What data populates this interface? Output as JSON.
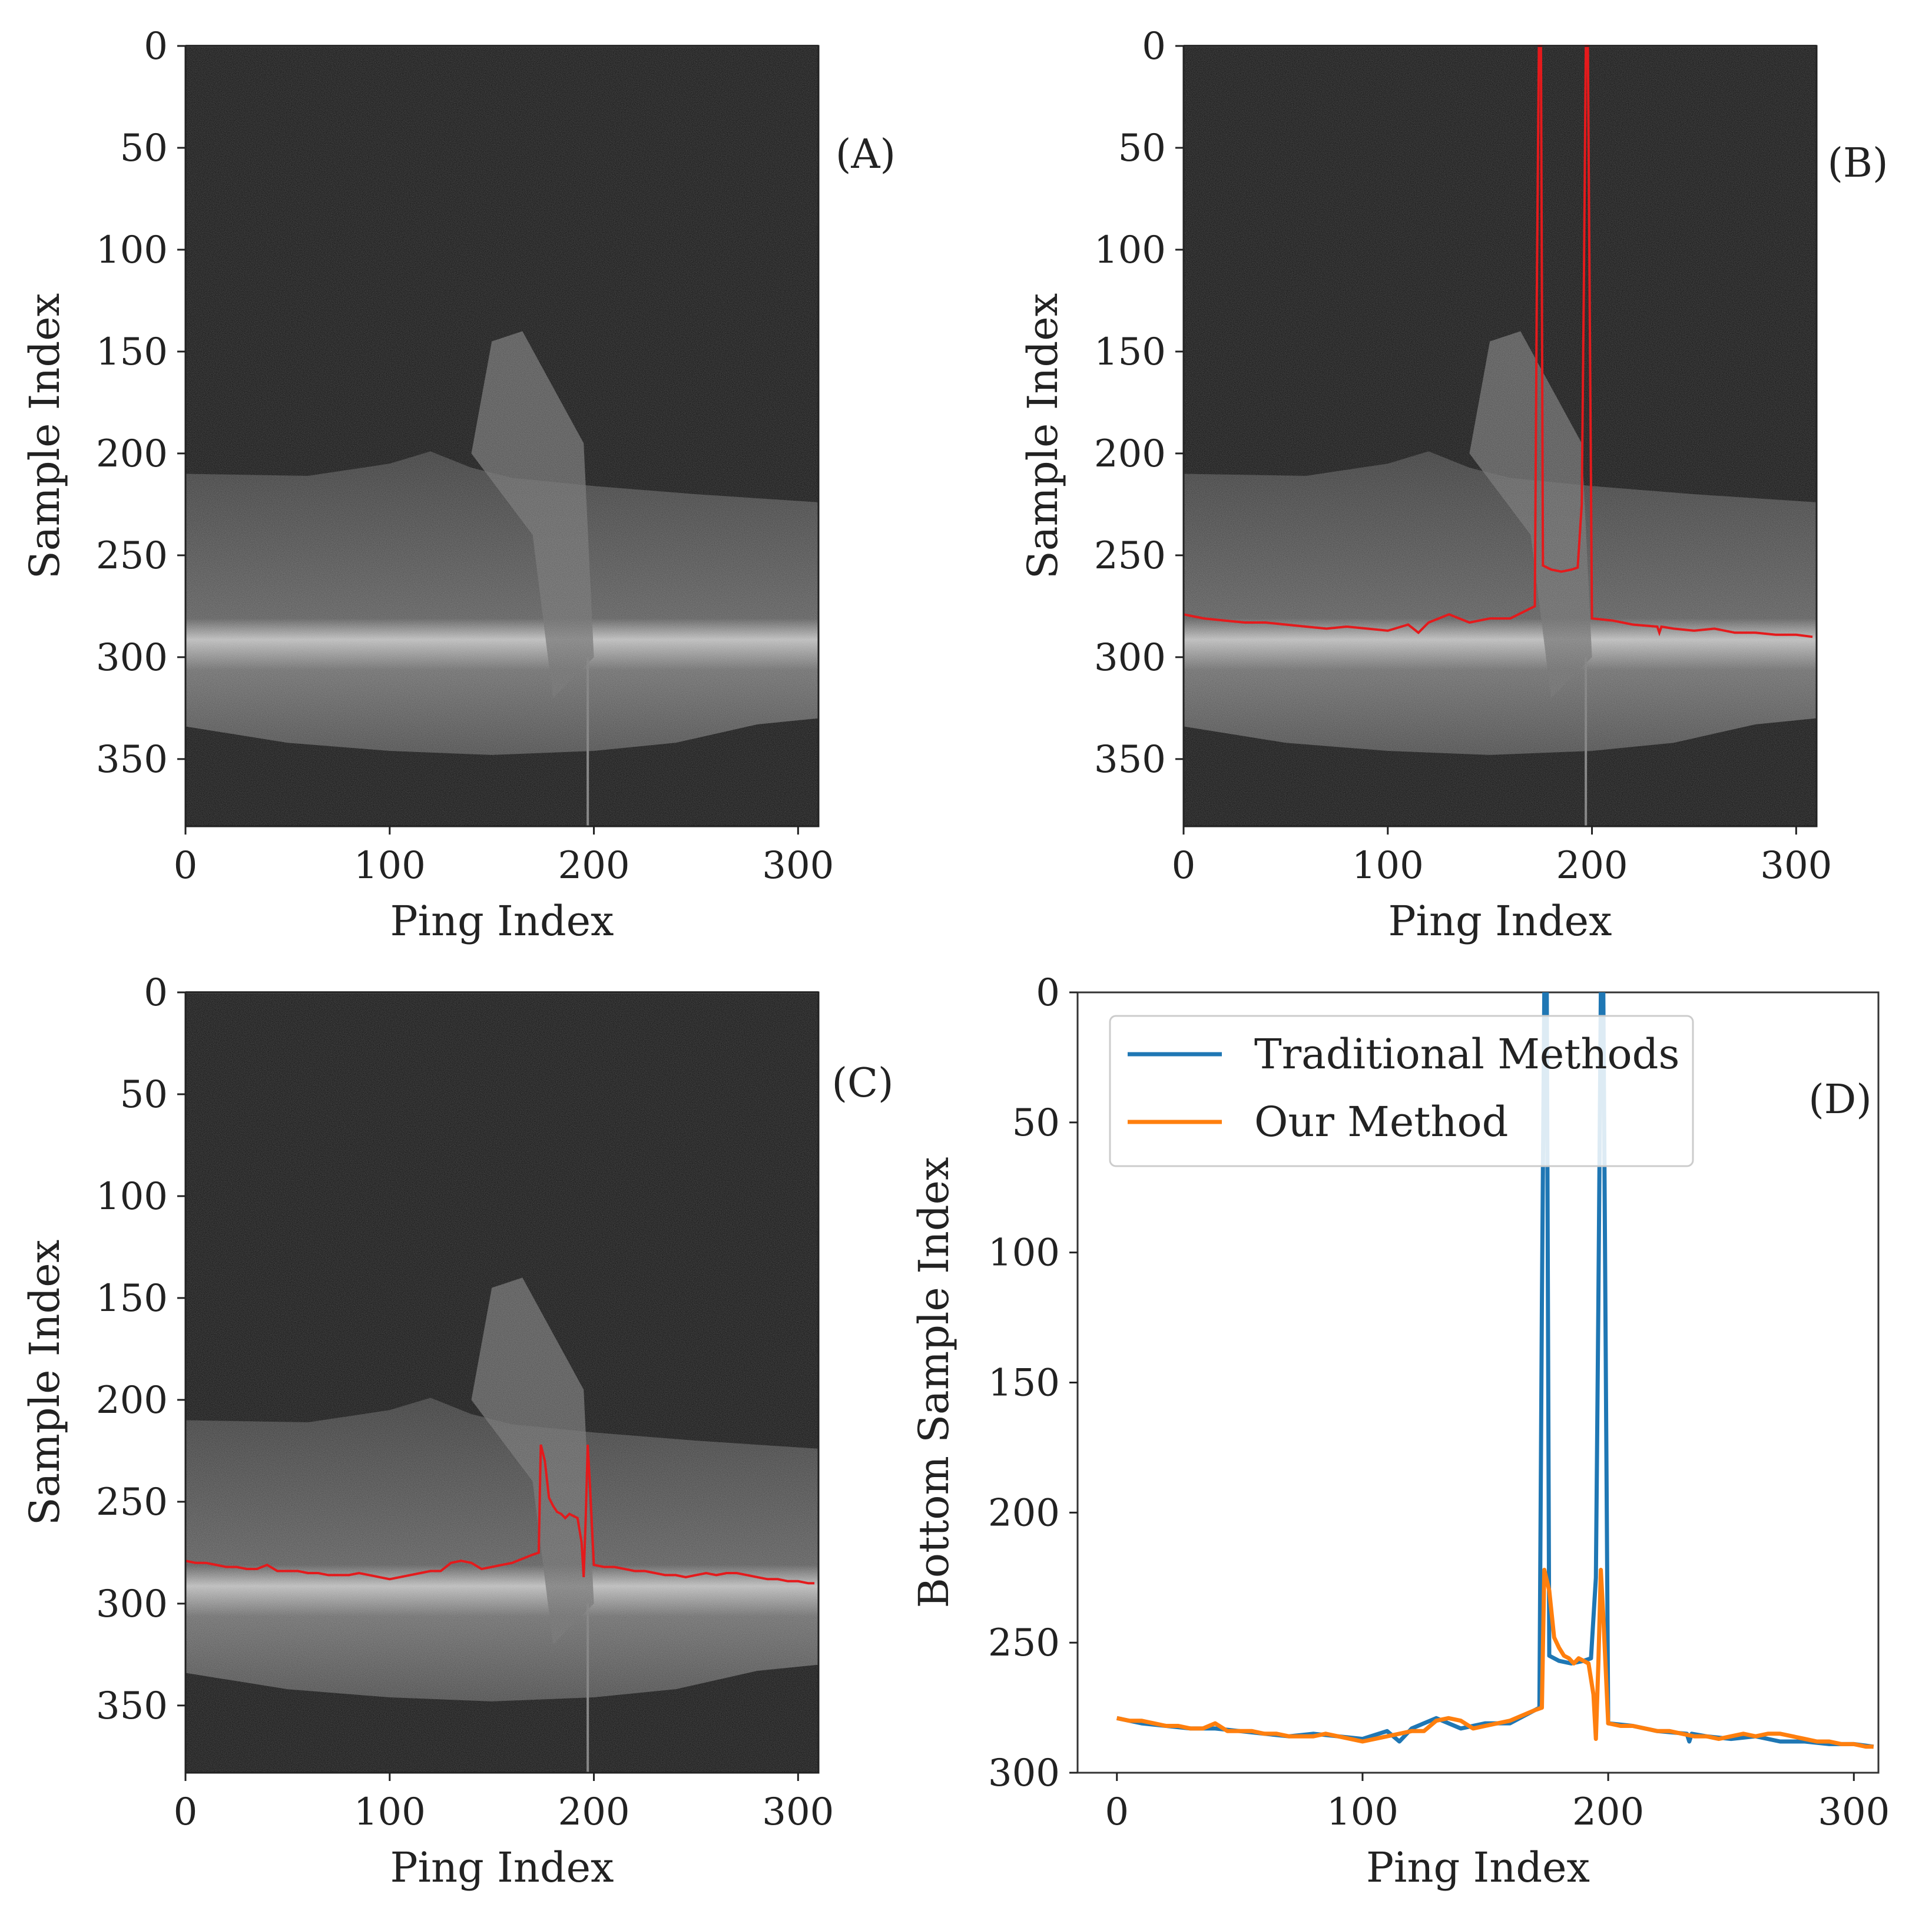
{
  "colors": {
    "blue": "#1f77b4",
    "orange": "#ff7f0e",
    "red": "#e41a1c",
    "axis": "#222222",
    "legendBorder": "#cccccc"
  },
  "chart_data": [
    {
      "id": "A",
      "type": "heatmap",
      "panel_label": "(A)",
      "xlabel": "Ping Index",
      "ylabel": "Sample Index",
      "xticks": [
        0,
        100,
        200,
        300
      ],
      "yticks": [
        0,
        50,
        100,
        150,
        200,
        250,
        300,
        350
      ],
      "xlim": [
        0,
        310
      ],
      "ylim": [
        383,
        0
      ],
      "overlays": []
    },
    {
      "id": "B",
      "type": "heatmap",
      "panel_label": "(B)",
      "xlabel": "Ping Index",
      "ylabel": "Sample Index",
      "xticks": [
        0,
        100,
        200,
        300
      ],
      "yticks": [
        0,
        50,
        100,
        150,
        200,
        250,
        300,
        350
      ],
      "xlim": [
        0,
        310
      ],
      "ylim": [
        383,
        0
      ],
      "overlays": [
        "traditional"
      ]
    },
    {
      "id": "C",
      "type": "heatmap",
      "panel_label": "(C)",
      "xlabel": "Ping Index",
      "ylabel": "Sample Index",
      "xticks": [
        0,
        100,
        200,
        300
      ],
      "yticks": [
        0,
        50,
        100,
        150,
        200,
        250,
        300,
        350
      ],
      "xlim": [
        0,
        310
      ],
      "ylim": [
        383,
        0
      ],
      "overlays": [
        "ours"
      ]
    },
    {
      "id": "D",
      "type": "line",
      "panel_label": "(D)",
      "xlabel": "Ping Index",
      "ylabel": "Bottom Sample Index",
      "xticks": [
        0,
        100,
        200,
        300
      ],
      "yticks": [
        0,
        50,
        100,
        150,
        200,
        250,
        300
      ],
      "xlim": [
        -16,
        310
      ],
      "ylim": [
        300,
        0
      ],
      "legend": {
        "position": "top-left"
      },
      "series": [
        {
          "name": "Traditional Methods",
          "key": "traditional",
          "x": [
            0,
            10,
            20,
            30,
            40,
            50,
            60,
            70,
            80,
            90,
            100,
            110,
            115,
            120,
            130,
            140,
            150,
            160,
            170,
            172,
            173,
            174,
            175,
            176,
            180,
            185,
            190,
            193,
            195,
            196,
            197,
            198,
            200,
            210,
            220,
            232,
            233,
            234,
            240,
            250,
            260,
            270,
            280,
            290,
            300,
            308
          ],
          "y": [
            279,
            281,
            282,
            283,
            283,
            284,
            285,
            286,
            285,
            286,
            287,
            284,
            288,
            283,
            279,
            283,
            281,
            281,
            276,
            275,
            120,
            0,
            0,
            255,
            257,
            258,
            257,
            256,
            225,
            120,
            0,
            0,
            281,
            282,
            284,
            285,
            288,
            285,
            286,
            287,
            286,
            288,
            288,
            289,
            289,
            290
          ]
        },
        {
          "name": "Our Method",
          "key": "ours",
          "x": [
            0,
            5,
            10,
            15,
            20,
            25,
            30,
            35,
            40,
            45,
            50,
            55,
            60,
            65,
            70,
            75,
            80,
            85,
            90,
            95,
            100,
            105,
            110,
            115,
            120,
            125,
            130,
            135,
            140,
            145,
            150,
            155,
            160,
            165,
            170,
            173,
            174,
            176,
            178,
            180,
            182,
            184,
            186,
            188,
            190,
            192,
            194,
            195,
            196,
            197,
            198,
            200,
            205,
            210,
            215,
            220,
            225,
            230,
            235,
            240,
            245,
            250,
            255,
            260,
            265,
            270,
            275,
            280,
            285,
            290,
            295,
            300,
            305,
            308
          ],
          "y": [
            279,
            280,
            280,
            281,
            282,
            282,
            283,
            283,
            281,
            284,
            284,
            284,
            285,
            285,
            286,
            286,
            286,
            285,
            286,
            287,
            288,
            287,
            286,
            285,
            284,
            284,
            280,
            279,
            280,
            283,
            282,
            281,
            280,
            278,
            276,
            275,
            222,
            230,
            248,
            252,
            255,
            256,
            258,
            256,
            257,
            258,
            270,
            287,
            258,
            222,
            240,
            281,
            282,
            282,
            283,
            284,
            284,
            285,
            286,
            286,
            287,
            286,
            285,
            286,
            285,
            285,
            286,
            287,
            288,
            288,
            289,
            289,
            290,
            290
          ]
        }
      ]
    }
  ]
}
